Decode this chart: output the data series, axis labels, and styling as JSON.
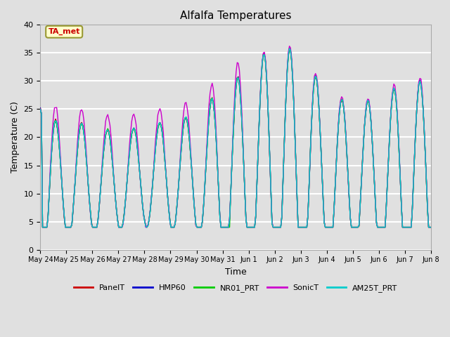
{
  "title": "Alfalfa Temperatures",
  "xlabel": "Time",
  "ylabel": "Temperature (C)",
  "ylim": [
    0,
    40
  ],
  "annotation_text": "TA_met",
  "annotation_box_color": "#ffffcc",
  "annotation_text_color": "#cc0000",
  "annotation_border_color": "#999933",
  "bg_color": "#e0e0e0",
  "line_colors": {
    "PanelT": "#cc0000",
    "HMP60": "#0000cc",
    "NR01_PRT": "#00cc00",
    "SonicT": "#cc00cc",
    "AM25T_PRT": "#00cccc"
  },
  "tick_labels": [
    "May 24",
    "May 25",
    "May 26",
    "May 27",
    "May 28",
    "May 29",
    "May 30",
    "May 31",
    "Jun 1",
    "Jun 2",
    "Jun 3",
    "Jun 4",
    "Jun 5",
    "Jun 6",
    "Jun 7",
    "Jun 8"
  ],
  "yticks": [
    0,
    5,
    10,
    15,
    20,
    25,
    30,
    35,
    40
  ],
  "days": 15,
  "n_points": 360
}
